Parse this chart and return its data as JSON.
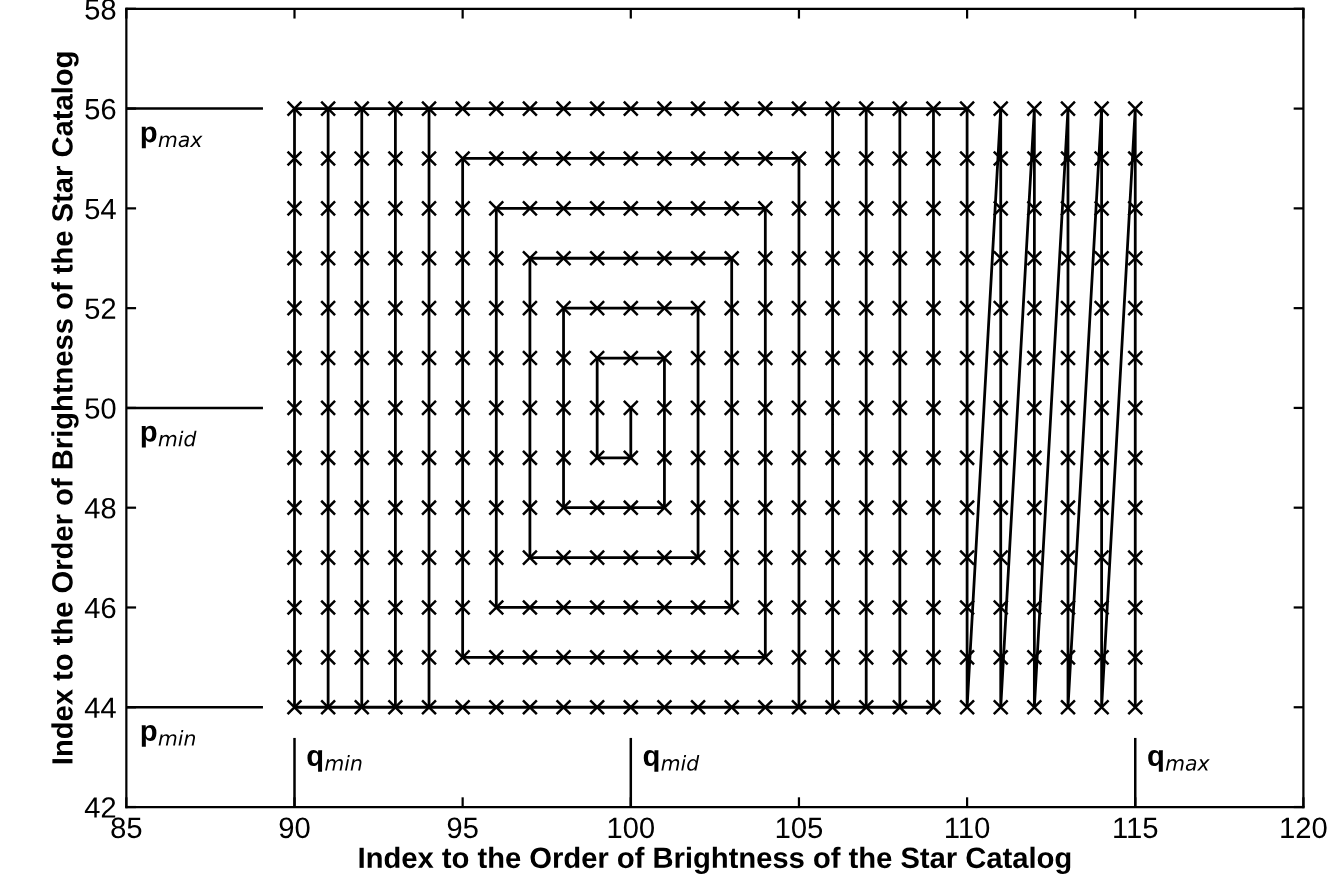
{
  "chart_data": {
    "type": "line",
    "xlabel": "Index to the Order of Brightness of the Star Catalog",
    "ylabel": "Index to the Order of Brightness of the Star Catalog",
    "xlim": [
      85,
      120
    ],
    "xticks": [
      85,
      90,
      95,
      100,
      105,
      110,
      115,
      120
    ],
    "ylim": [
      42,
      58
    ],
    "yticks": [
      42,
      44,
      46,
      48,
      50,
      52,
      54,
      56,
      58
    ],
    "grid": false,
    "legend": false,
    "series": [
      {
        "type": "line",
        "color": "#000000",
        "marker": "none",
        "line_style": "solid",
        "x": [
          100,
          100,
          99,
          99,
          101,
          101,
          98,
          98,
          102,
          102,
          97,
          97,
          103,
          103,
          96,
          96,
          104,
          104,
          95,
          95,
          105,
          105,
          94,
          94,
          106,
          106,
          93,
          93,
          107,
          107,
          92,
          92,
          108,
          108,
          91,
          91,
          109,
          109,
          90,
          90,
          110,
          110,
          111,
          111,
          112,
          112,
          113,
          113,
          114,
          114,
          115,
          115
        ],
        "values": [
          50,
          49,
          49,
          51,
          51,
          48,
          48,
          52,
          52,
          47,
          47,
          53,
          53,
          46,
          46,
          54,
          54,
          45,
          45,
          55,
          55,
          44,
          44,
          56,
          56,
          44,
          44,
          56,
          56,
          44,
          44,
          56,
          56,
          44,
          44,
          56,
          56,
          44,
          44,
          56,
          56,
          44,
          56,
          44,
          56,
          44,
          56,
          44,
          56,
          44,
          56,
          44
        ]
      },
      {
        "type": "scatter",
        "color": "#000000",
        "marker": "cross",
        "x": [
          90,
          90,
          90,
          90,
          90,
          90,
          90,
          90,
          90,
          90,
          90,
          90,
          90,
          91,
          91,
          91,
          91,
          91,
          91,
          91,
          91,
          91,
          91,
          91,
          91,
          91,
          92,
          92,
          92,
          92,
          92,
          92,
          92,
          92,
          92,
          92,
          92,
          92,
          92,
          93,
          93,
          93,
          93,
          93,
          93,
          93,
          93,
          93,
          93,
          93,
          93,
          93,
          94,
          94,
          94,
          94,
          94,
          94,
          94,
          94,
          94,
          94,
          94,
          94,
          94,
          95,
          95,
          95,
          95,
          95,
          95,
          95,
          95,
          95,
          95,
          95,
          95,
          95,
          96,
          96,
          96,
          96,
          96,
          96,
          96,
          96,
          96,
          96,
          96,
          96,
          96,
          97,
          97,
          97,
          97,
          97,
          97,
          97,
          97,
          97,
          97,
          97,
          97,
          97,
          98,
          98,
          98,
          98,
          98,
          98,
          98,
          98,
          98,
          98,
          98,
          98,
          98,
          99,
          99,
          99,
          99,
          99,
          99,
          99,
          99,
          99,
          99,
          99,
          99,
          99,
          100,
          100,
          100,
          100,
          100,
          100,
          100,
          100,
          100,
          100,
          100,
          100,
          100,
          101,
          101,
          101,
          101,
          101,
          101,
          101,
          101,
          101,
          101,
          101,
          101,
          101,
          102,
          102,
          102,
          102,
          102,
          102,
          102,
          102,
          102,
          102,
          102,
          102,
          102,
          103,
          103,
          103,
          103,
          103,
          103,
          103,
          103,
          103,
          103,
          103,
          103,
          103,
          104,
          104,
          104,
          104,
          104,
          104,
          104,
          104,
          104,
          104,
          104,
          104,
          104,
          105,
          105,
          105,
          105,
          105,
          105,
          105,
          105,
          105,
          105,
          105,
          105,
          105,
          106,
          106,
          106,
          106,
          106,
          106,
          106,
          106,
          106,
          106,
          106,
          106,
          106,
          107,
          107,
          107,
          107,
          107,
          107,
          107,
          107,
          107,
          107,
          107,
          107,
          107,
          108,
          108,
          108,
          108,
          108,
          108,
          108,
          108,
          108,
          108,
          108,
          108,
          108,
          109,
          109,
          109,
          109,
          109,
          109,
          109,
          109,
          109,
          109,
          109,
          109,
          109,
          110,
          110,
          110,
          110,
          110,
          110,
          110,
          110,
          110,
          110,
          110,
          110,
          110,
          111,
          111,
          111,
          111,
          111,
          111,
          111,
          111,
          111,
          111,
          111,
          111,
          111,
          112,
          112,
          112,
          112,
          112,
          112,
          112,
          112,
          112,
          112,
          112,
          112,
          112,
          113,
          113,
          113,
          113,
          113,
          113,
          113,
          113,
          113,
          113,
          113,
          113,
          113,
          114,
          114,
          114,
          114,
          114,
          114,
          114,
          114,
          114,
          114,
          114,
          114,
          114,
          115,
          115,
          115,
          115,
          115,
          115,
          115,
          115,
          115,
          115,
          115,
          115,
          115
        ],
        "values": [
          44,
          45,
          46,
          47,
          48,
          49,
          50,
          51,
          52,
          53,
          54,
          55,
          56,
          44,
          45,
          46,
          47,
          48,
          49,
          50,
          51,
          52,
          53,
          54,
          55,
          56,
          44,
          45,
          46,
          47,
          48,
          49,
          50,
          51,
          52,
          53,
          54,
          55,
          56,
          44,
          45,
          46,
          47,
          48,
          49,
          50,
          51,
          52,
          53,
          54,
          55,
          56,
          44,
          45,
          46,
          47,
          48,
          49,
          50,
          51,
          52,
          53,
          54,
          55,
          56,
          44,
          45,
          46,
          47,
          48,
          49,
          50,
          51,
          52,
          53,
          54,
          55,
          56,
          44,
          45,
          46,
          47,
          48,
          49,
          50,
          51,
          52,
          53,
          54,
          55,
          56,
          44,
          45,
          46,
          47,
          48,
          49,
          50,
          51,
          52,
          53,
          54,
          55,
          56,
          44,
          45,
          46,
          47,
          48,
          49,
          50,
          51,
          52,
          53,
          54,
          55,
          56,
          44,
          45,
          46,
          47,
          48,
          49,
          50,
          51,
          52,
          53,
          54,
          55,
          56,
          44,
          45,
          46,
          47,
          48,
          49,
          50,
          51,
          52,
          53,
          54,
          55,
          56,
          44,
          45,
          46,
          47,
          48,
          49,
          50,
          51,
          52,
          53,
          54,
          55,
          56,
          44,
          45,
          46,
          47,
          48,
          49,
          50,
          51,
          52,
          53,
          54,
          55,
          56,
          44,
          45,
          46,
          47,
          48,
          49,
          50,
          51,
          52,
          53,
          54,
          55,
          56,
          44,
          45,
          46,
          47,
          48,
          49,
          50,
          51,
          52,
          53,
          54,
          55,
          56,
          44,
          45,
          46,
          47,
          48,
          49,
          50,
          51,
          52,
          53,
          54,
          55,
          56,
          44,
          45,
          46,
          47,
          48,
          49,
          50,
          51,
          52,
          53,
          54,
          55,
          56,
          44,
          45,
          46,
          47,
          48,
          49,
          50,
          51,
          52,
          53,
          54,
          55,
          56,
          44,
          45,
          46,
          47,
          48,
          49,
          50,
          51,
          52,
          53,
          54,
          55,
          56,
          44,
          45,
          46,
          47,
          48,
          49,
          50,
          51,
          52,
          53,
          54,
          55,
          56,
          44,
          45,
          46,
          47,
          48,
          49,
          50,
          51,
          52,
          53,
          54,
          55,
          56,
          44,
          45,
          46,
          47,
          48,
          49,
          50,
          51,
          52,
          53,
          54,
          55,
          56,
          44,
          45,
          46,
          47,
          48,
          49,
          50,
          51,
          52,
          53,
          54,
          55,
          56,
          44,
          45,
          46,
          47,
          48,
          49,
          50,
          51,
          52,
          53,
          54,
          55,
          56,
          44,
          45,
          46,
          47,
          48,
          49,
          50,
          51,
          52,
          53,
          54,
          55,
          56,
          44,
          45,
          46,
          47,
          48,
          49,
          50,
          51,
          52,
          53,
          54,
          55,
          56
        ]
      }
    ],
    "ref_lines": [
      {
        "axis": "y",
        "value": 56,
        "label": "p$_{max}$"
      },
      {
        "axis": "y",
        "value": 50,
        "label": "p$_{mid}$"
      },
      {
        "axis": "y",
        "value": 44,
        "label": "p$_{min}$"
      },
      {
        "axis": "x",
        "value": 90,
        "label": "q$_{min}$"
      },
      {
        "axis": "x",
        "value": 100,
        "label": "q$_{mid}$"
      },
      {
        "axis": "x",
        "value": 115,
        "label": "q$_{max}$"
      }
    ]
  }
}
